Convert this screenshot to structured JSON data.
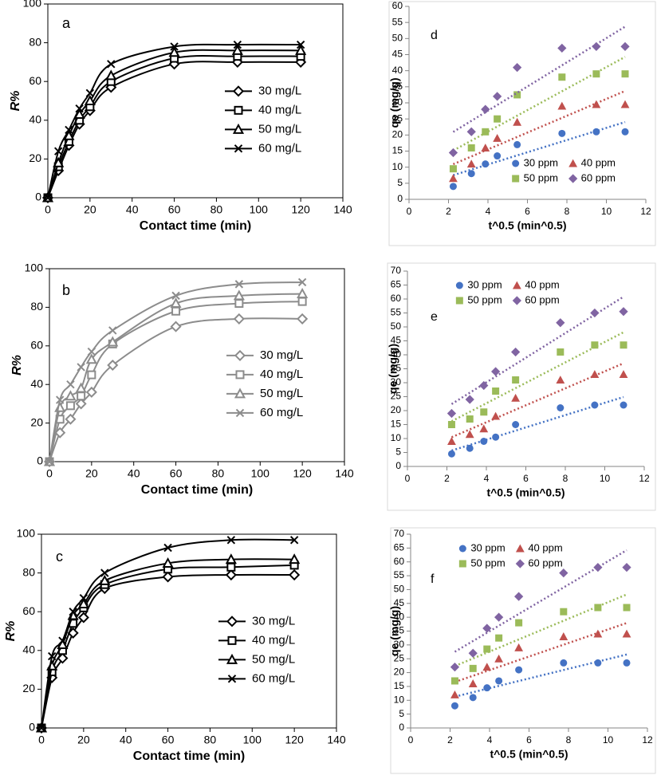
{
  "chart_data": [
    {
      "type": "line",
      "annotation": "a",
      "xlabel": "Contact time (min)",
      "ylabel": "R%",
      "color": "#000000",
      "x": [
        0,
        5,
        10,
        15,
        20,
        30,
        60,
        90,
        120
      ],
      "xlim": [
        0,
        140
      ],
      "xticks": [
        0,
        20,
        40,
        60,
        80,
        100,
        120,
        140
      ],
      "ylim": [
        0,
        100
      ],
      "yticks": [
        0,
        20,
        40,
        60,
        80,
        100
      ],
      "legend": "right",
      "series": [
        {
          "name": "30 mg/L",
          "marker": "diamond",
          "values": [
            0,
            14,
            27,
            38,
            45,
            57,
            69,
            70,
            70
          ]
        },
        {
          "name": "40 mg/L",
          "marker": "square",
          "values": [
            0,
            16,
            29,
            40,
            47,
            60,
            72,
            73,
            73
          ]
        },
        {
          "name": "50 mg/L",
          "marker": "triangle",
          "values": [
            0,
            18,
            32,
            43,
            50,
            63,
            75,
            76,
            76
          ]
        },
        {
          "name": "60 mg/L",
          "marker": "x",
          "values": [
            0,
            24,
            35,
            46,
            54,
            69,
            78,
            79,
            79
          ]
        }
      ]
    },
    {
      "type": "line",
      "annotation": "b",
      "xlabel": "Contact time  (min)",
      "ylabel": "R%",
      "color": "#8c8c8c",
      "x": [
        0,
        5,
        10,
        15,
        20,
        30,
        60,
        90,
        120
      ],
      "xlim": [
        0,
        140
      ],
      "xticks": [
        0,
        20,
        40,
        60,
        80,
        100,
        120,
        140
      ],
      "ylim": [
        0,
        100
      ],
      "yticks": [
        0,
        20,
        40,
        60,
        80,
        100
      ],
      "legend": "right",
      "series": [
        {
          "name": "30 mg/L",
          "marker": "diamond",
          "values": [
            0,
            15,
            22,
            30,
            36,
            50,
            70,
            74,
            74
          ]
        },
        {
          "name": "40 mg/L",
          "marker": "square",
          "values": [
            0,
            22,
            29,
            34,
            45,
            61,
            78,
            82,
            83
          ]
        },
        {
          "name": "50 mg/L",
          "marker": "triangle",
          "values": [
            0,
            28,
            34,
            38,
            53,
            62,
            82,
            86,
            87
          ]
        },
        {
          "name": "60 mg/L",
          "marker": "x",
          "values": [
            0,
            32,
            40,
            49,
            57,
            68,
            86,
            92,
            93
          ]
        }
      ]
    },
    {
      "type": "line",
      "annotation": "c",
      "xlabel": "Contact time (min)",
      "ylabel": "R%",
      "color": "#000000",
      "x": [
        0,
        5,
        10,
        15,
        20,
        30,
        60,
        90,
        120
      ],
      "xlim": [
        0,
        140
      ],
      "xticks": [
        0,
        20,
        40,
        60,
        80,
        100,
        120,
        140
      ],
      "ylim": [
        0,
        100
      ],
      "yticks": [
        0,
        20,
        40,
        60,
        80,
        100
      ],
      "legend": "right",
      "series": [
        {
          "name": "30 mg/L",
          "marker": "diamond",
          "values": [
            0,
            26,
            36,
            49,
            57,
            72,
            78,
            79,
            79
          ]
        },
        {
          "name": "40 mg/L",
          "marker": "square",
          "values": [
            0,
            29,
            40,
            54,
            62,
            74,
            82,
            83,
            84
          ]
        },
        {
          "name": "50 mg/L",
          "marker": "triangle",
          "values": [
            0,
            32,
            43,
            58,
            64,
            76,
            85,
            87,
            87
          ]
        },
        {
          "name": "60 mg/L",
          "marker": "x",
          "values": [
            0,
            37,
            45,
            60,
            67,
            80,
            93,
            97,
            97
          ]
        }
      ]
    },
    {
      "type": "scatter",
      "annotation": "d",
      "xlabel": "t^0.5 (min^0.5)",
      "ylabel": "qe (mg/g)",
      "trendline": "linear",
      "x": [
        2.24,
        3.16,
        3.87,
        4.47,
        5.48,
        7.75,
        9.49,
        10.95
      ],
      "xlim": [
        0,
        12
      ],
      "xticks": [
        0,
        2,
        4,
        6,
        8,
        10,
        12
      ],
      "ylim": [
        0,
        60
      ],
      "yticks": [
        0,
        5,
        10,
        15,
        20,
        25,
        30,
        35,
        40,
        45,
        50,
        55,
        60
      ],
      "legend": "lower right",
      "series": [
        {
          "name": "30 ppm",
          "color": "#4472c4",
          "marker": "circle",
          "values": [
            4,
            8,
            11,
            13.5,
            17,
            20.5,
            21,
            21
          ]
        },
        {
          "name": "40 ppm",
          "color": "#c0504d",
          "marker": "triangle",
          "values": [
            6.5,
            11,
            16,
            19,
            24,
            29,
            29.5,
            29.5
          ]
        },
        {
          "name": "50 ppm",
          "color": "#9bbb59",
          "marker": "square",
          "values": [
            9.5,
            16,
            21,
            25,
            32.5,
            38,
            39,
            39
          ]
        },
        {
          "name": "60 ppm",
          "color": "#8064a2",
          "marker": "diamond",
          "values": [
            14.5,
            21,
            28,
            32,
            41,
            47,
            47.5,
            47.5
          ]
        }
      ]
    },
    {
      "type": "scatter",
      "annotation": "e",
      "xlabel": "t^0.5 (min^0.5)",
      "ylabel": "qe (mg/g)",
      "trendline": "linear",
      "x": [
        2.24,
        3.16,
        3.87,
        4.47,
        5.48,
        7.75,
        9.49,
        10.95
      ],
      "xlim": [
        0,
        12
      ],
      "xticks": [
        0,
        2,
        4,
        6,
        8,
        10,
        12
      ],
      "ylim": [
        0,
        70
      ],
      "yticks": [
        0,
        5,
        10,
        15,
        20,
        25,
        30,
        35,
        40,
        45,
        50,
        55,
        60,
        65,
        70
      ],
      "legend": "upper left",
      "series": [
        {
          "name": "30 ppm",
          "color": "#4472c4",
          "marker": "circle",
          "values": [
            4.5,
            6.5,
            9,
            10.5,
            15,
            21,
            22,
            22
          ]
        },
        {
          "name": "40 ppm",
          "color": "#c0504d",
          "marker": "triangle",
          "values": [
            9,
            11.5,
            13.5,
            18,
            24.5,
            31,
            33,
            33
          ]
        },
        {
          "name": "50 ppm",
          "color": "#9bbb59",
          "marker": "square",
          "values": [
            15,
            17,
            19.5,
            27,
            31,
            41,
            43.5,
            43.5
          ]
        },
        {
          "name": "60 ppm",
          "color": "#8064a2",
          "marker": "diamond",
          "values": [
            19,
            24,
            29,
            34,
            41,
            51.5,
            55,
            55.5
          ]
        }
      ]
    },
    {
      "type": "scatter",
      "annotation": "f",
      "xlabel": "t^0.5 (min^0.5)",
      "ylabel": "qe (mg/g)",
      "trendline": "linear",
      "x": [
        2.24,
        3.16,
        3.87,
        4.47,
        5.48,
        7.75,
        9.49,
        10.95
      ],
      "xlim": [
        0,
        12
      ],
      "xticks": [
        0,
        2,
        4,
        6,
        8,
        10,
        12
      ],
      "ylim": [
        0,
        70
      ],
      "yticks": [
        0,
        5,
        10,
        15,
        20,
        25,
        30,
        35,
        40,
        45,
        50,
        55,
        60,
        65,
        70
      ],
      "legend": "upper left",
      "series": [
        {
          "name": "30 ppm",
          "color": "#4472c4",
          "marker": "circle",
          "values": [
            8,
            11,
            14.5,
            17,
            21,
            23.5,
            23.5,
            23.5
          ]
        },
        {
          "name": "40 ppm",
          "color": "#c0504d",
          "marker": "triangle",
          "values": [
            12,
            16,
            22,
            25,
            29,
            33,
            34,
            34
          ]
        },
        {
          "name": "50 ppm",
          "color": "#9bbb59",
          "marker": "square",
          "values": [
            17,
            21.5,
            28.5,
            32.5,
            38,
            42,
            43.5,
            43.5
          ]
        },
        {
          "name": "60 ppm",
          "color": "#8064a2",
          "marker": "diamond",
          "values": [
            22,
            27,
            36,
            40,
            47.5,
            56,
            58,
            58
          ]
        }
      ]
    }
  ]
}
